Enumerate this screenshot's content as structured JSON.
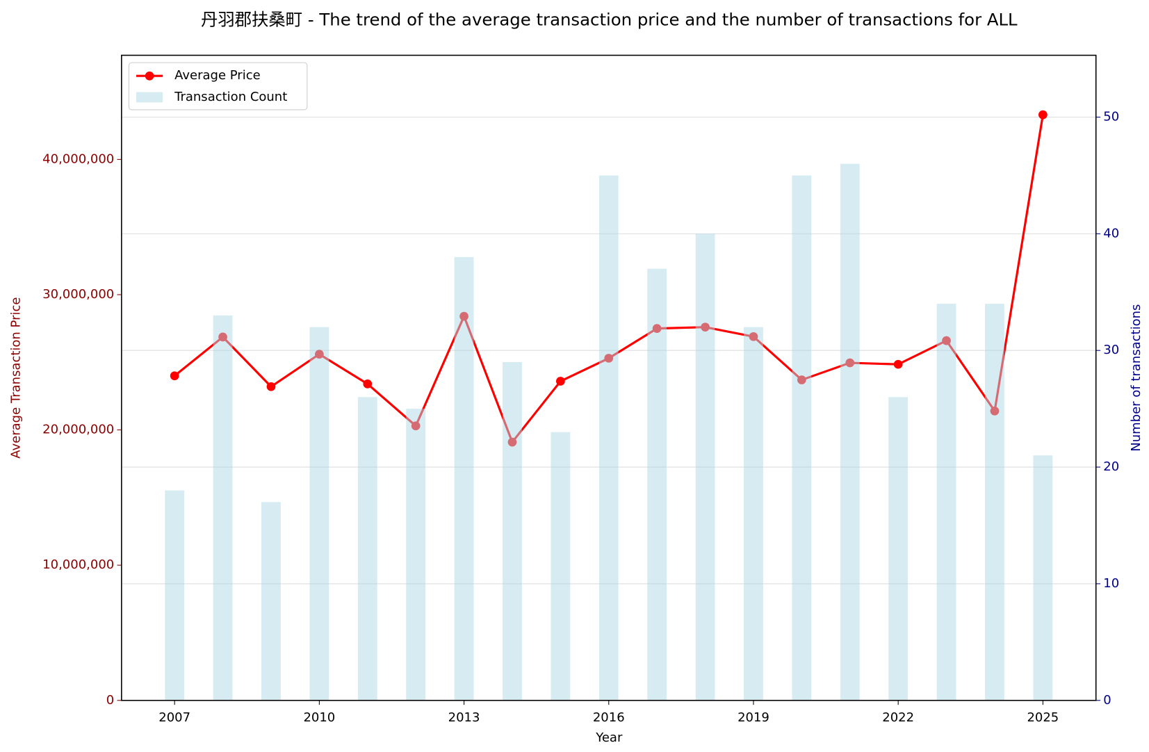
{
  "chart_data": {
    "type": "line_bar",
    "title": "丹羽郡扶桑町 - The trend of the average transaction price and the number of transactions for ALL",
    "x_label": "Year",
    "y_label": "Average Transaction Price",
    "y2_label": "Number of transactions",
    "x": [
      2007,
      2008,
      2009,
      2010,
      2011,
      2012,
      2013,
      2014,
      2015,
      2016,
      2017,
      2018,
      2019,
      2020,
      2021,
      2022,
      2023,
      2024,
      2025
    ],
    "series": [
      {
        "name": "Average Price",
        "color": "#ff0000",
        "type": "line",
        "values": [
          24000000,
          26870000,
          23200000,
          25600000,
          23400000,
          20300000,
          28400000,
          19100000,
          23600000,
          25300000,
          27500000,
          27600000,
          26900000,
          23700000,
          24960000,
          24850000,
          26600000,
          21400000,
          43300000
        ]
      },
      {
        "name": "Transaction Count",
        "color": "#add8e6",
        "type": "bar",
        "axis": "y2",
        "values": [
          18,
          33,
          17,
          32,
          26,
          25,
          38,
          29,
          23,
          45,
          37,
          40,
          32,
          45,
          46,
          26,
          34,
          34,
          21
        ]
      }
    ],
    "xlim": [
      2005.9,
      2026.1
    ],
    "xticks": [
      2007,
      2010,
      2013,
      2016,
      2019,
      2022,
      2025
    ],
    "ylim": [
      0,
      47700000
    ],
    "yticks": [
      0,
      {
        "value": 10000000,
        "label": "10,000,000"
      },
      {
        "value": 20000000,
        "label": "20,000,000"
      },
      {
        "value": 30000000,
        "label": "30,000,000"
      },
      {
        "value": 40000000,
        "label": "40,000,000"
      }
    ],
    "y2lim": [
      0,
      55.3
    ],
    "y2ticks": [
      0,
      10,
      20,
      30,
      40,
      50
    ],
    "grid": true,
    "legend": "upper left"
  }
}
